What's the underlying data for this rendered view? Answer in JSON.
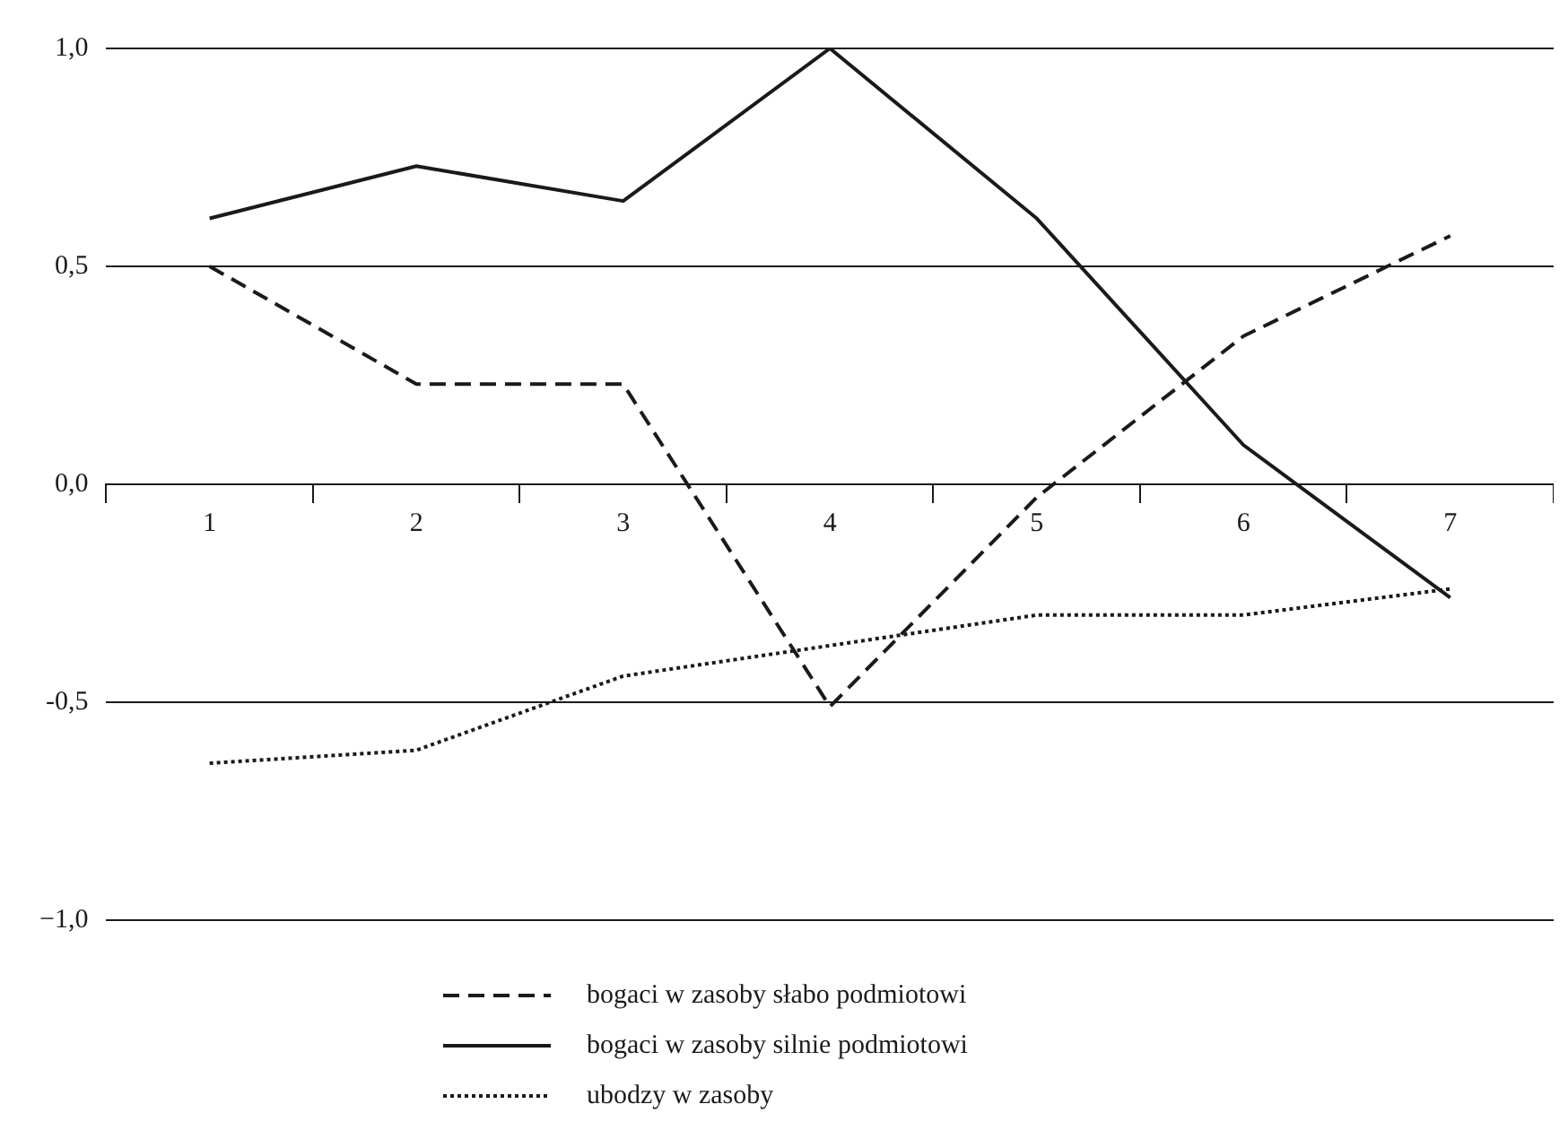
{
  "chart_data": {
    "type": "line",
    "categories": [
      "1",
      "2",
      "3",
      "4",
      "5",
      "6",
      "7"
    ],
    "series": [
      {
        "name": "bogaci w zasoby słabo podmiotowi",
        "color": "#1a1a1a",
        "line_style": "dashed",
        "values": [
          0.5,
          0.23,
          0.23,
          -0.51,
          -0.03,
          0.34,
          0.57
        ]
      },
      {
        "name": "bogaci w zasoby silnie podmiotowi",
        "color": "#1a1a1a",
        "line_style": "solid",
        "values": [
          0.61,
          0.73,
          0.65,
          1.0,
          0.61,
          0.09,
          -0.26
        ]
      },
      {
        "name": "ubodzy w zasoby",
        "color": "#1a1a1a",
        "line_style": "dotted",
        "values": [
          -0.64,
          -0.61,
          -0.44,
          -0.37,
          -0.3,
          -0.3,
          -0.24
        ]
      }
    ],
    "ylim": [
      -1,
      1
    ],
    "yticks": [
      {
        "value": -1,
        "label": "−1,0"
      },
      {
        "value": -0.5,
        "label": "-0,5"
      },
      {
        "value": 0,
        "label": "0,0"
      },
      {
        "value": 0.5,
        "label": "0,5"
      },
      {
        "value": 1,
        "label": "1,0"
      }
    ],
    "grid": "y",
    "legend": "bottom",
    "marker": "none"
  }
}
